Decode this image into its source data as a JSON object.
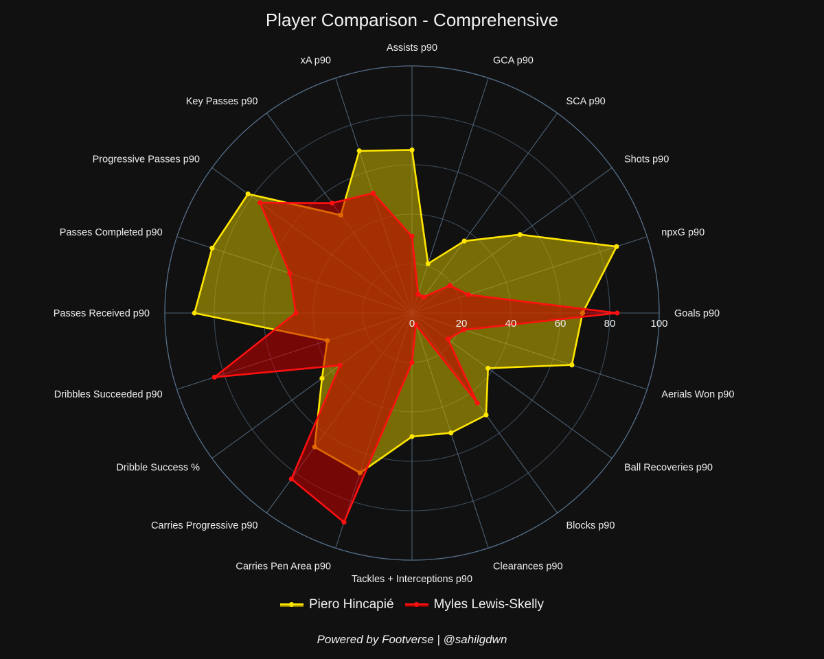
{
  "title": "Player Comparison - Comprehensive",
  "footer": "Powered by Footverse | @sahilgdwn",
  "chart_data": {
    "type": "radar",
    "title": "Player Comparison - Comprehensive",
    "radial_range": [
      0,
      100
    ],
    "radial_ticks": [
      0,
      20,
      40,
      60,
      80,
      100
    ],
    "axes": [
      "Goals p90",
      "npxG p90",
      "Shots p90",
      "SCA p90",
      "GCA p90",
      "Assists p90",
      "xA p90",
      "Key Passes p90",
      "Progressive Passes p90",
      "Passes Completed p90",
      "Passes Received p90",
      "Dribbles Succeeded p90",
      "Dribble Success %",
      "Carries Progressive p90",
      "Carries Pen Area p90",
      "Tackles + Interceptions p90",
      "Clearances p90",
      "Blocks p90",
      "Ball Recoveries p90",
      "Aerials Won p90"
    ],
    "series": [
      {
        "name": "Piero Hincapié",
        "color": "#FFE600",
        "fill": "rgba(190,170,0,0.6)",
        "values": [
          69,
          87,
          54,
          36,
          21,
          66,
          69,
          49,
          82,
          85,
          88,
          36,
          45,
          67,
          68,
          50,
          51,
          51,
          38,
          68
        ]
      },
      {
        "name": "Myles Lewis-Skelly",
        "color": "#FF1010",
        "fill": "rgba(200,0,0,0.55)",
        "values": [
          83,
          24,
          19,
          8,
          8,
          31,
          51,
          55,
          76,
          52,
          47,
          84,
          36,
          83,
          89,
          20,
          5,
          45,
          18,
          22
        ]
      }
    ]
  },
  "legend": {
    "items": [
      {
        "label": "Piero Hincapié",
        "color": "#FFE600"
      },
      {
        "label": "Myles Lewis-Skelly",
        "color": "#FF1010"
      }
    ]
  }
}
